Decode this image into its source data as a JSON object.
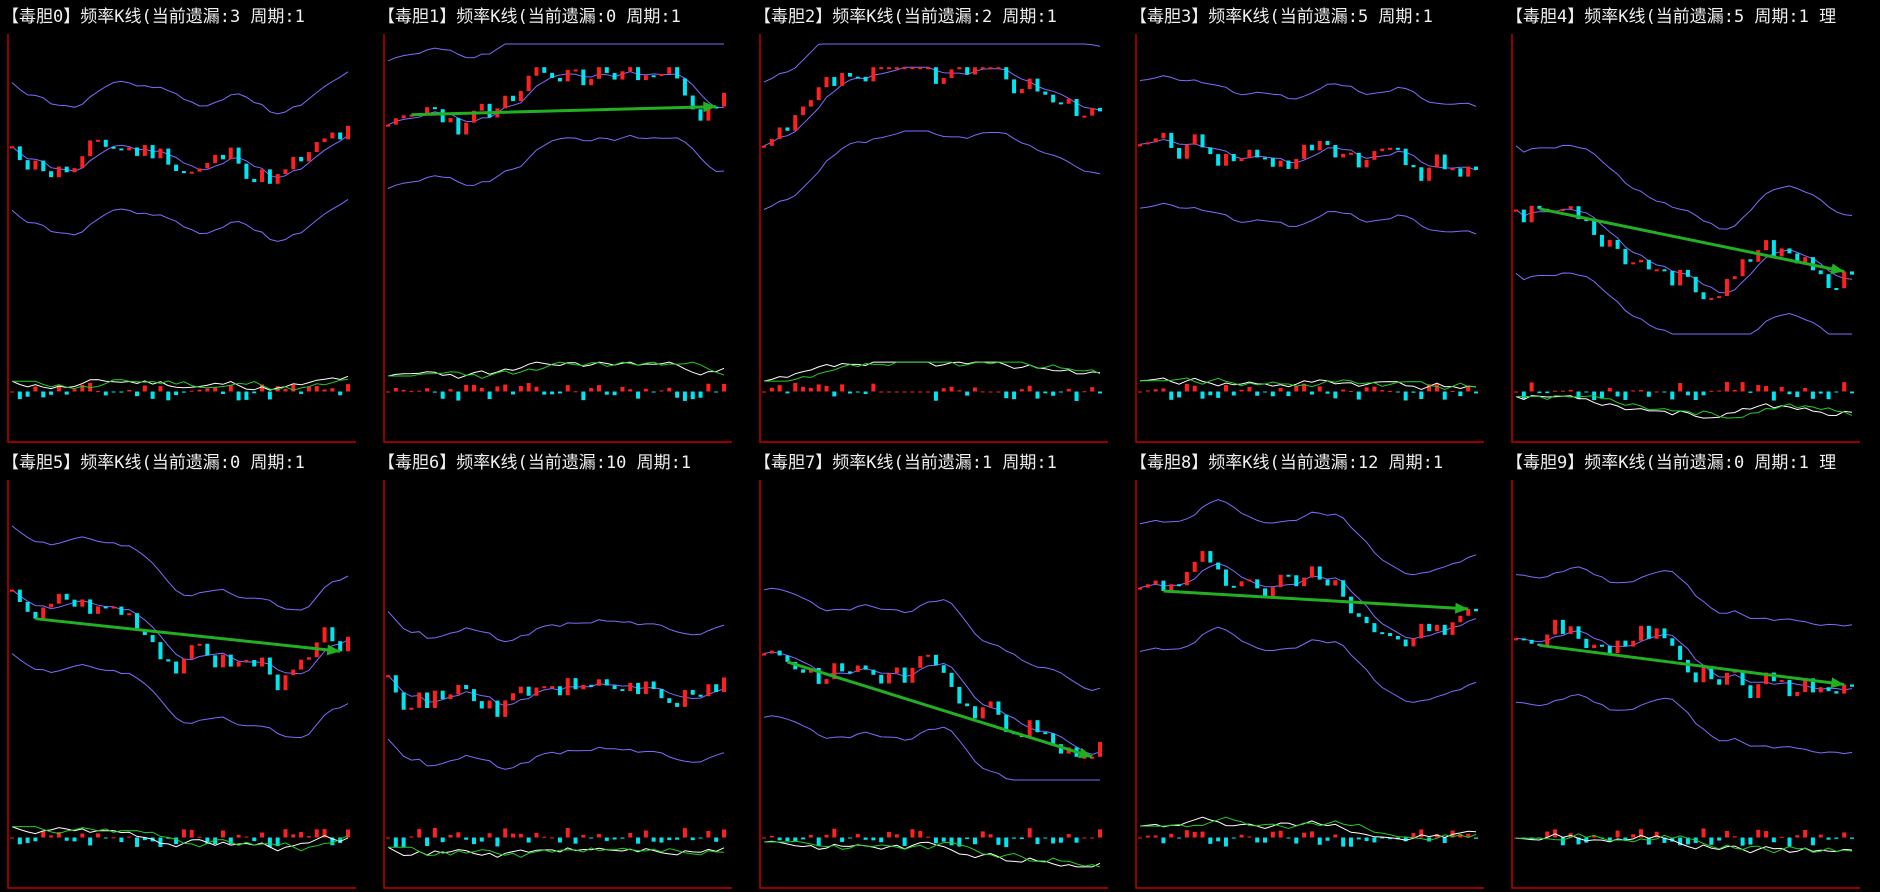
{
  "colors": {
    "background": "#000000",
    "axis": "#c00000",
    "up_candle": "#ff2020",
    "down_candle": "#00e5f0",
    "bollinger": "#7b6cff",
    "arrow": "#22b022",
    "macd_fast": "#ffffff",
    "macd_slow": "#22cc22"
  },
  "panels": [
    {
      "title": "【毒胆0】频率K线(当前遗漏:3 周期:1",
      "has_arrow": false,
      "seed": 11
    },
    {
      "title": "【毒胆1】频率K线(当前遗漏:0 周期:1",
      "has_arrow": true,
      "seed": 23
    },
    {
      "title": "【毒胆2】频率K线(当前遗漏:2 周期:1",
      "has_arrow": false,
      "seed": 37
    },
    {
      "title": "【毒胆3】频率K线(当前遗漏:5 周期:1",
      "has_arrow": false,
      "seed": 41
    },
    {
      "title": "【毒胆4】频率K线(当前遗漏:5 周期:1 理",
      "has_arrow": true,
      "seed": 53
    },
    {
      "title": "【毒胆5】频率K线(当前遗漏:0 周期:1",
      "has_arrow": true,
      "seed": 67
    },
    {
      "title": "【毒胆6】频率K线(当前遗漏:10 周期:1",
      "has_arrow": false,
      "seed": 71
    },
    {
      "title": "【毒胆7】频率K线(当前遗漏:1 周期:1",
      "has_arrow": true,
      "seed": 83
    },
    {
      "title": "【毒胆8】频率K线(当前遗漏:12 周期:1",
      "has_arrow": true,
      "seed": 97
    },
    {
      "title": "【毒胆9】频率K线(当前遗漏:0 周期:1 理",
      "has_arrow": true,
      "seed": 101
    }
  ]
}
